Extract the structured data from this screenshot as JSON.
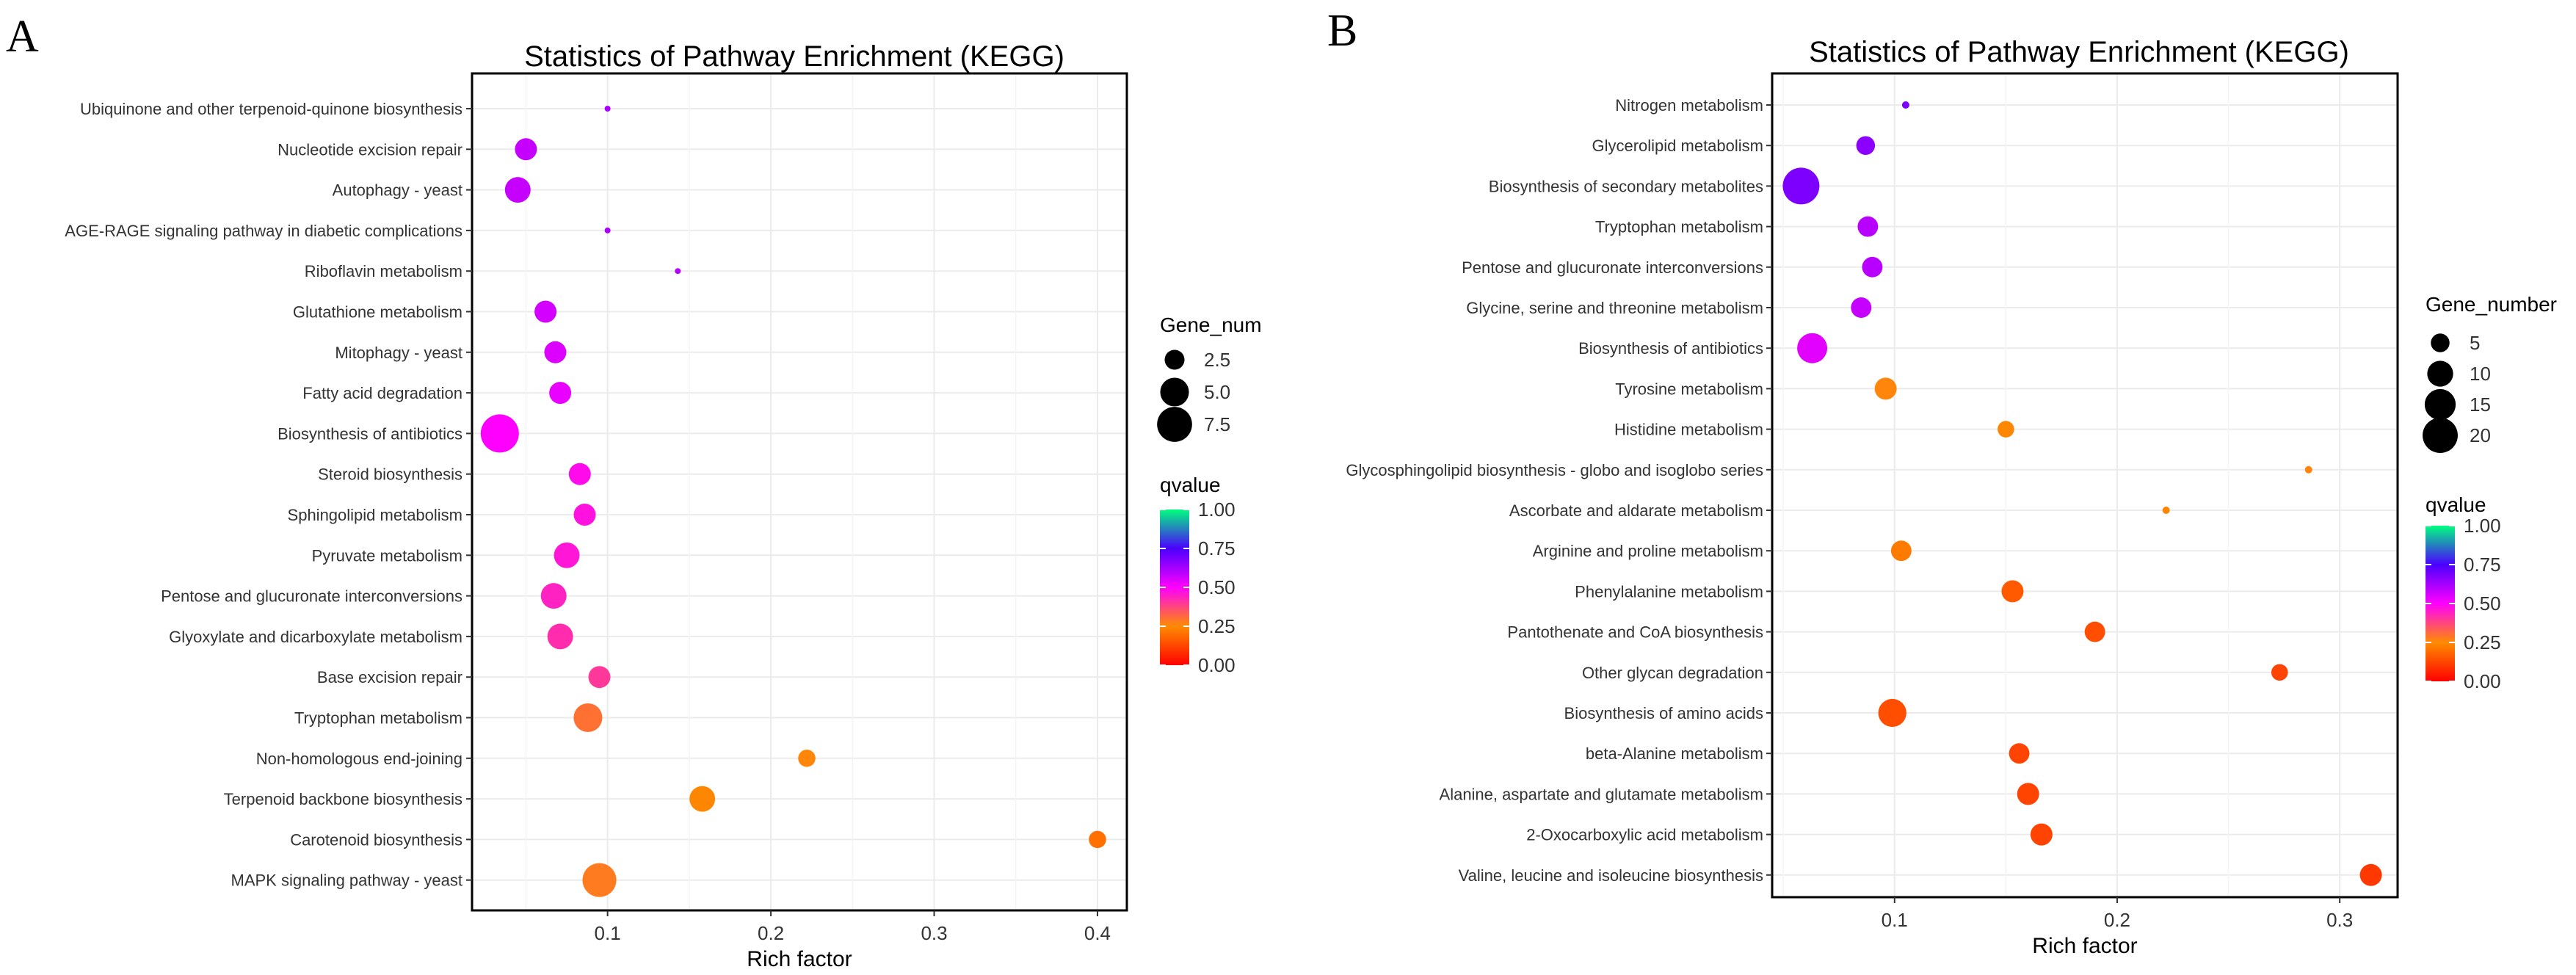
{
  "chart_data": [
    {
      "panel": "A",
      "type": "scatter",
      "title": "Statistics of Pathway Enrichment (KEGG)",
      "xlabel": "Rich factor",
      "xlim": [
        0.017,
        0.418
      ],
      "xticks": [
        0.1,
        0.2,
        0.3,
        0.4
      ],
      "xtick_labels": [
        "0.1",
        "0.2",
        "0.3",
        "0.4"
      ],
      "grid": true,
      "legend_position": "right",
      "categories": [
        "Ubiquinone and other terpenoid-quinone biosynthesis",
        "Nucleotide excision repair",
        "Autophagy - yeast",
        "AGE-RAGE signaling pathway in diabetic complications",
        "Riboflavin metabolism",
        "Glutathione metabolism",
        "Mitophagy - yeast",
        "Fatty acid degradation",
        "Biosynthesis of antibiotics",
        "Steroid biosynthesis",
        "Sphingolipid metabolism",
        "Pyruvate metabolism",
        "Pentose and glucuronate interconversions",
        "Glyoxylate and dicarboxylate metabolism",
        "Base excision repair",
        "Tryptophan metabolism",
        "Non-homologous end-joining",
        "Terpenoid backbone biosynthesis",
        "Carotenoid biosynthesis",
        "MAPK signaling pathway - yeast"
      ],
      "rich_factor": [
        0.1,
        0.05,
        0.045,
        0.1,
        0.143,
        0.062,
        0.068,
        0.071,
        0.034,
        0.083,
        0.086,
        0.075,
        0.067,
        0.071,
        0.095,
        0.088,
        0.222,
        0.158,
        0.4,
        0.095
      ],
      "gene_num": [
        1,
        3,
        4,
        1,
        1,
        3,
        3,
        3,
        9,
        3,
        3,
        4,
        4,
        4,
        3,
        5,
        2,
        4,
        2,
        7
      ],
      "qvalue": [
        0.62,
        0.58,
        0.58,
        0.62,
        0.6,
        0.56,
        0.55,
        0.53,
        0.5,
        0.48,
        0.47,
        0.46,
        0.44,
        0.42,
        0.4,
        0.3,
        0.26,
        0.24,
        0.2,
        0.28
      ],
      "size_legend": {
        "title": "Gene_num",
        "values": [
          2.5,
          5.0,
          7.5
        ],
        "labels": [
          "2.5",
          "5.0",
          "7.5"
        ]
      },
      "color_legend": {
        "title": "qvalue",
        "labels": [
          "1.00",
          "0.75",
          "0.50",
          "0.25",
          "0.00"
        ],
        "values": [
          1.0,
          0.75,
          0.5,
          0.25,
          0.0
        ]
      },
      "size_range": [
        1,
        9
      ]
    },
    {
      "panel": "B",
      "type": "scatter",
      "title": "Statistics of Pathway Enrichment (KEGG)",
      "xlabel": "Rich factor",
      "xlim": [
        0.045,
        0.326
      ],
      "xticks": [
        0.1,
        0.2,
        0.3
      ],
      "xtick_labels": [
        "0.1",
        "0.2",
        "0.3"
      ],
      "grid": true,
      "legend_position": "right",
      "categories": [
        "Nitrogen metabolism",
        "Glycerolipid metabolism",
        "Biosynthesis of secondary metabolites",
        "Tryptophan metabolism",
        "Pentose and glucuronate interconversions",
        "Glycine, serine and threonine metabolism",
        "Biosynthesis of antibiotics",
        "Tyrosine metabolism",
        "Histidine metabolism",
        "Glycosphingolipid biosynthesis - globo and isoglobo series",
        "Ascorbate and aldarate metabolism",
        "Arginine and proline metabolism",
        "Phenylalanine metabolism",
        "Pantothenate and CoA biosynthesis",
        "Other glycan degradation",
        "Biosynthesis of amino acids",
        "beta-Alanine metabolism",
        "Alanine, aspartate and glutamate metabolism",
        "2-Oxocarboxylic acid metabolism",
        "Valine, leucine and isoleucine biosynthesis"
      ],
      "rich_factor": [
        0.105,
        0.087,
        0.058,
        0.088,
        0.09,
        0.085,
        0.063,
        0.096,
        0.15,
        0.286,
        0.222,
        0.103,
        0.153,
        0.19,
        0.273,
        0.099,
        0.156,
        0.16,
        0.166,
        0.314
      ],
      "gene_num": [
        2,
        5,
        22,
        6,
        6,
        6,
        14,
        7,
        4,
        2,
        2,
        6,
        7,
        6,
        4,
        12,
        6,
        7,
        7,
        7
      ],
      "qvalue": [
        0.68,
        0.66,
        0.68,
        0.6,
        0.6,
        0.58,
        0.54,
        0.26,
        0.24,
        0.26,
        0.24,
        0.22,
        0.16,
        0.14,
        0.12,
        0.14,
        0.12,
        0.12,
        0.12,
        0.1
      ],
      "size_legend": {
        "title": "Gene_number",
        "values": [
          5,
          10,
          15,
          20
        ],
        "labels": [
          "5",
          "10",
          "15",
          "20"
        ]
      },
      "color_legend": {
        "title": "qvalue",
        "labels": [
          "1.00",
          "0.75",
          "0.50",
          "0.25",
          "0.00"
        ],
        "values": [
          1.0,
          0.75,
          0.5,
          0.25,
          0.0
        ]
      },
      "size_range": [
        2,
        22
      ]
    }
  ],
  "colors": {
    "q_scale": [
      "#ff0000",
      "#ff8c00",
      "#ff00ff",
      "#4b00ff",
      "#00ff7f"
    ],
    "grid": "#ebebeb",
    "axis": "#000000",
    "text": "#333333"
  }
}
